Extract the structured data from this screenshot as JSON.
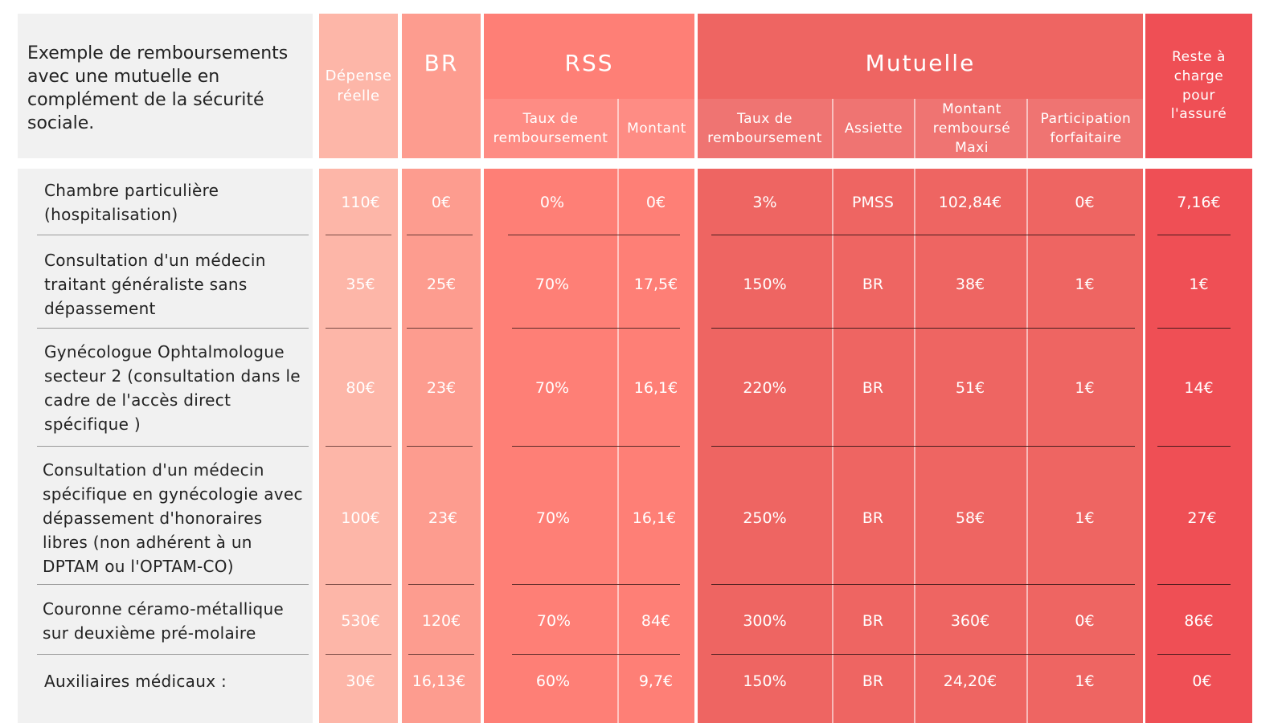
{
  "intro": "Exemple de remboursements avec une mutuelle en complément de la sécurité sociale.",
  "headers": {
    "depense": "Dépense réelle",
    "br": "BR",
    "rss": "RSS",
    "mutuelle": "Mutuelle",
    "reste": "Reste à charge pour l'assuré",
    "rss_taux": "Taux de remboursement",
    "rss_montant": "Montant",
    "mut_taux": "Taux de remboursement",
    "mut_assiette": "Assiette",
    "mut_montant": "Montant remboursé Maxi",
    "mut_participation": "Participation forfaitaire"
  },
  "rows": [
    {
      "label": "Chambre particulière (hospitalisation)",
      "depense": "110€",
      "br": "0€",
      "rss_taux": "0%",
      "rss_montant": "0€",
      "mut_taux": "3%",
      "assiette": "PMSS",
      "mut_montant": "102,84€",
      "participation": "0€",
      "reste": "7,16€"
    },
    {
      "label": "Consultation d'un médecin traitant généraliste sans dépassement",
      "depense": "35€",
      "br": "25€",
      "rss_taux": "70%",
      "rss_montant": "17,5€",
      "mut_taux": "150%",
      "assiette": "BR",
      "mut_montant": "38€",
      "participation": "1€",
      "reste": "1€"
    },
    {
      "label": "Gynécologue Ophtalmologue secteur 2 (consultation dans le cadre de l'accès direct spécifique )",
      "depense": "80€",
      "br": "23€",
      "rss_taux": "70%",
      "rss_montant": "16,1€",
      "mut_taux": "220%",
      "assiette": "BR",
      "mut_montant": "51€",
      "participation": "1€",
      "reste": "14€"
    },
    {
      "label": "Consultation d'un médecin spécifique en gynécologie avec dépassement d'honoraires libres (non adhérent à un DPTAM ou l'OPTAM-CO)",
      "depense": "100€",
      "br": "23€",
      "rss_taux": "70%",
      "rss_montant": "16,1€",
      "mut_taux": "250%",
      "assiette": "BR",
      "mut_montant": "58€",
      "participation": "1€",
      "reste": "27€"
    },
    {
      "label": "Couronne céramo-métallique sur deuxième pré-molaire",
      "depense": "530€",
      "br": "120€",
      "rss_taux": "70%",
      "rss_montant": "84€",
      "mut_taux": "300%",
      "assiette": "BR",
      "mut_montant": "360€",
      "participation": "0€",
      "reste": "86€"
    },
    {
      "label": "Auxiliaires médicaux :",
      "depense": "30€",
      "br": "16,13€",
      "rss_taux": "60%",
      "rss_montant": "9,7€",
      "mut_taux": "150%",
      "assiette": "BR",
      "mut_montant": "24,20€",
      "participation": "1€",
      "reste": "0€"
    }
  ],
  "colors": {
    "label_bg": "#f1f1f1",
    "depense_bg": "#fdb6a8",
    "br_bg": "#fd9c8f",
    "rss_bg": "#fe7f76",
    "mutuelle_bg": "#ee6562",
    "reste_bg": "#ef4f55"
  }
}
